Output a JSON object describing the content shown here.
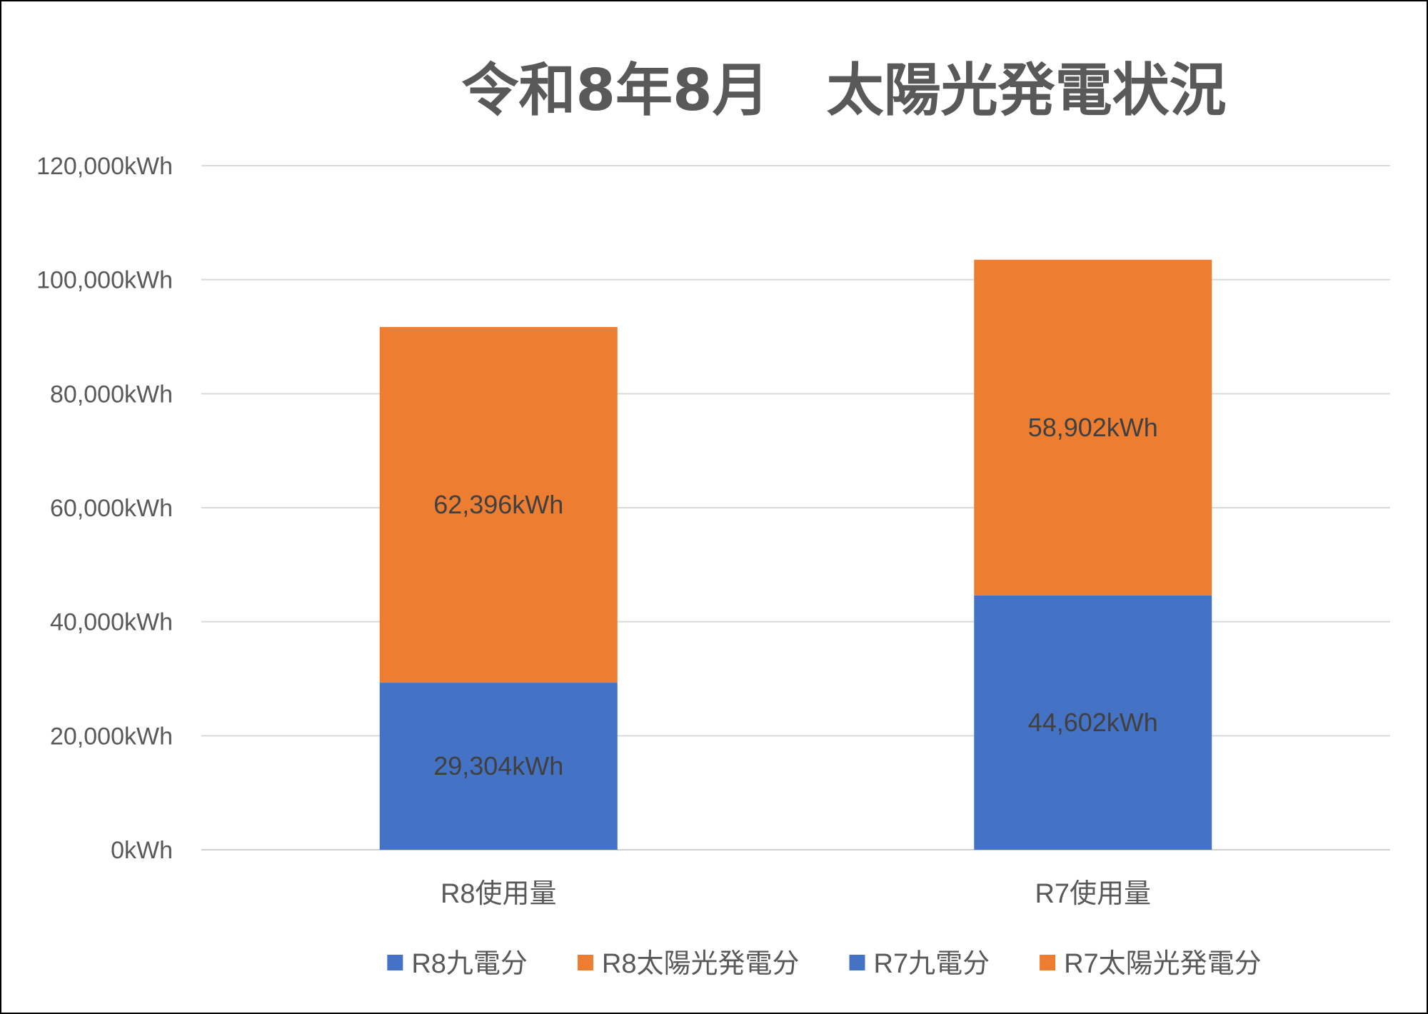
{
  "chart_data": {
    "type": "bar",
    "stacked": true,
    "title": "令和8年8月　太陽光発電状況",
    "categories": [
      "R8使用量",
      "R7使用量"
    ],
    "series": [
      {
        "name": "R8九電分",
        "color": "#4472C4",
        "values": [
          29304,
          null
        ]
      },
      {
        "name": "R8太陽光発電分",
        "color": "#ED7D31",
        "values": [
          62396,
          null
        ]
      },
      {
        "name": "R7九電分",
        "color": "#4472C4",
        "values": [
          null,
          44602
        ]
      },
      {
        "name": "R7太陽光発電分",
        "color": "#ED7D31",
        "values": [
          null,
          58902
        ]
      }
    ],
    "data_labels": [
      {
        "category": "R8使用量",
        "series": "R8九電分",
        "text": "29,304kWh"
      },
      {
        "category": "R8使用量",
        "series": "R8太陽光発電分",
        "text": "62,396kWh"
      },
      {
        "category": "R7使用量",
        "series": "R7九電分",
        "text": "44,602kWh"
      },
      {
        "category": "R7使用量",
        "series": "R7太陽光発電分",
        "text": "58,902kWh"
      }
    ],
    "ylim": [
      0,
      120000
    ],
    "yticks": [
      0,
      20000,
      40000,
      60000,
      80000,
      100000,
      120000
    ],
    "ytick_labels": [
      "0kWh",
      "20,000kWh",
      "40,000kWh",
      "60,000kWh",
      "80,000kWh",
      "100,000kWh",
      "120,000kWh"
    ],
    "xlabel": "",
    "ylabel": "",
    "grid": true,
    "legend": "bottom"
  }
}
